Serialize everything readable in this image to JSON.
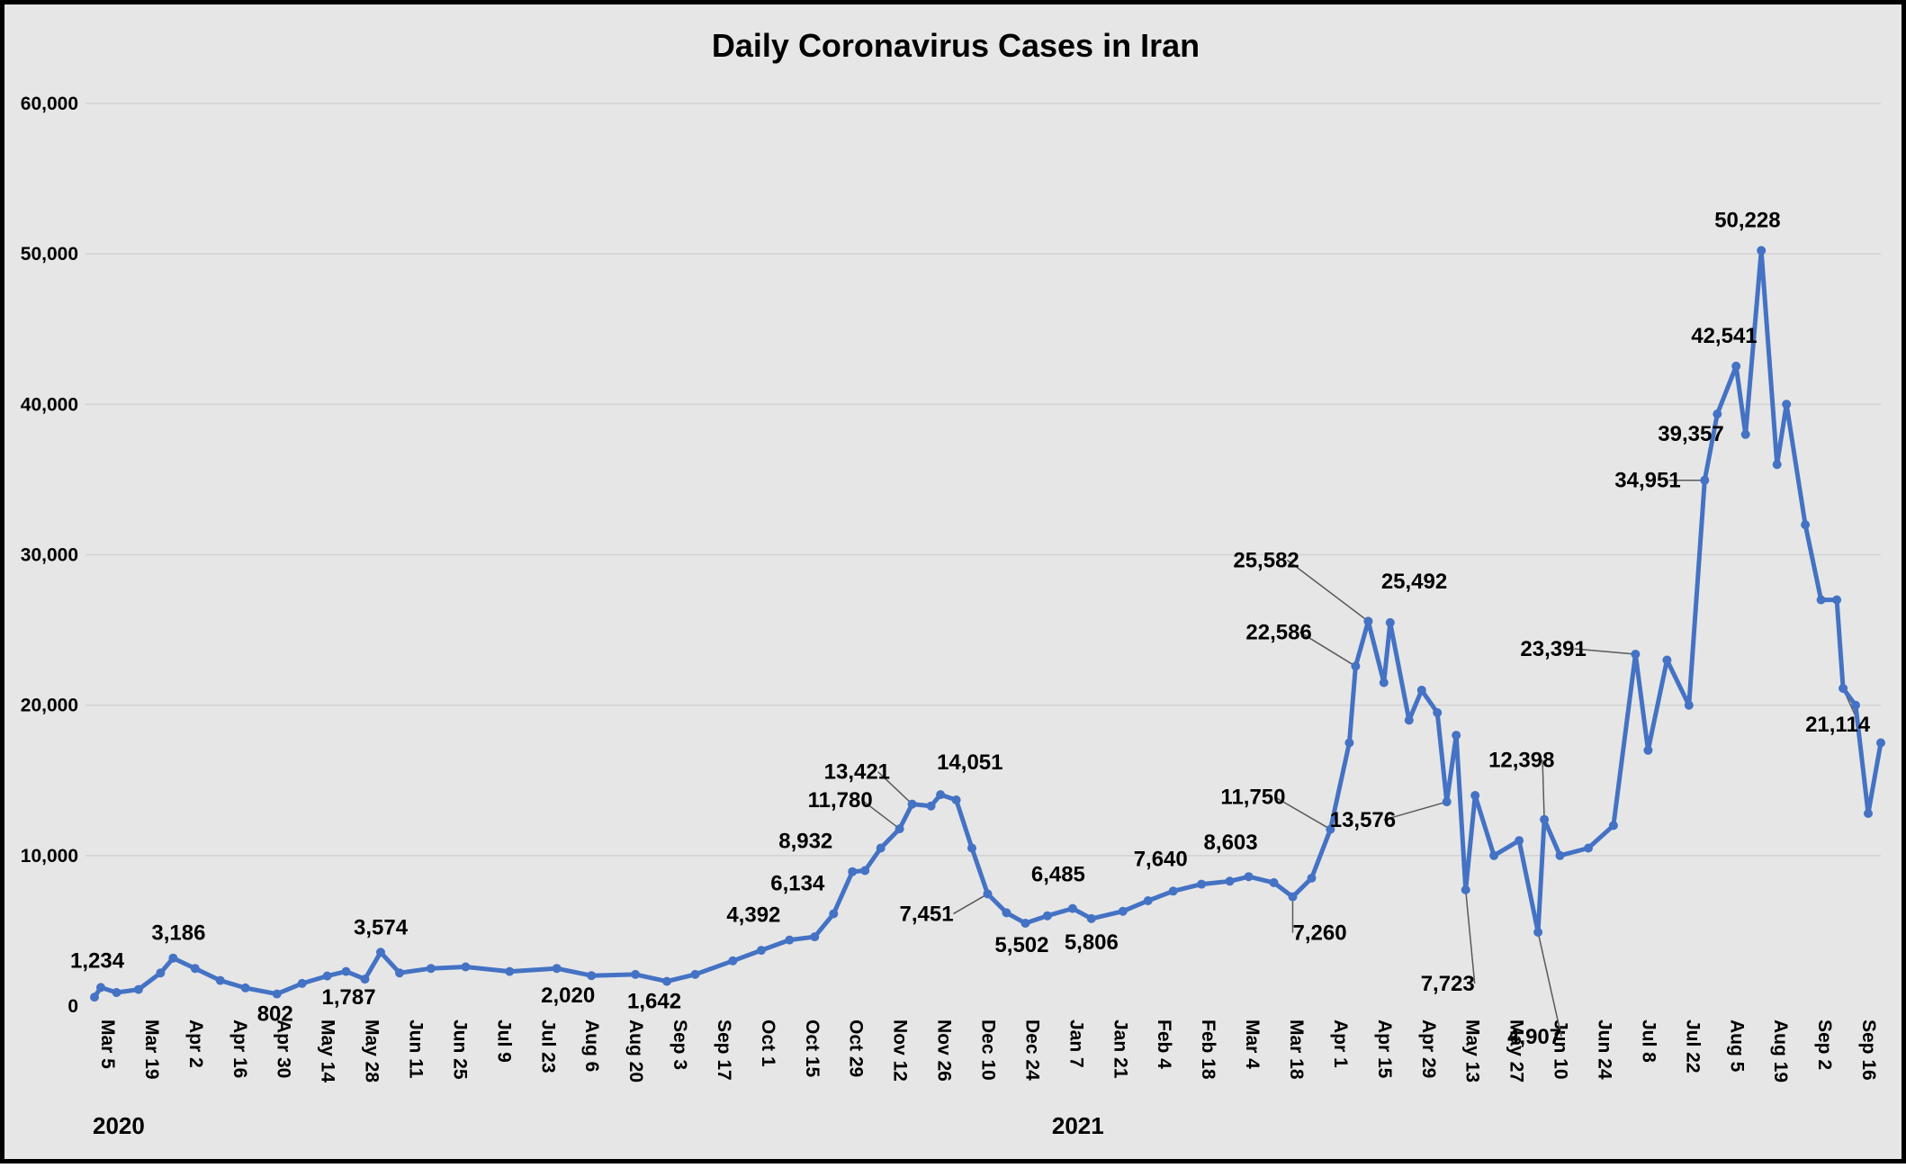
{
  "chart_data": {
    "type": "line",
    "title": "Daily Coronavirus Cases in Iran",
    "xlabel": "",
    "ylabel": "",
    "ylim": [
      0,
      60000
    ],
    "yticks": [
      0,
      10000,
      20000,
      30000,
      40000,
      50000,
      60000
    ],
    "ytick_labels": [
      "0",
      "10,000",
      "20,000",
      "30,000",
      "40,000",
      "50,000",
      "60,000"
    ],
    "grid": "horizontal",
    "legend": "none",
    "colors": {
      "line": "#4472c4",
      "background": "#e6e6e6",
      "grid": "#d2d2d2"
    },
    "x_start": "2020-03-05",
    "x_end": "2021-09-24",
    "xtick_labels": [
      "Mar 5",
      "Mar 19",
      "Apr 2",
      "Apr 16",
      "Apr 30",
      "May 14",
      "May 28",
      "Jun 11",
      "Jun 25",
      "Jul 9",
      "Jul 23",
      "Aug 6",
      "Aug 20",
      "Sep 3",
      "Sep 17",
      "Oct 1",
      "Oct 15",
      "Oct 29",
      "Nov 12",
      "Nov 26",
      "Dec 10",
      "Dec 24",
      "Jan 7",
      "Jan 21",
      "Feb 4",
      "Feb 18",
      "Mar 4",
      "Mar 18",
      "Apr 1",
      "Apr 15",
      "Apr 29",
      "May 13",
      "May 27",
      "Jun 10",
      "Jun 24",
      "Jul 8",
      "Jul 22",
      "Aug 5",
      "Aug 19",
      "Sep 2",
      "Sep 16"
    ],
    "year_labels": [
      {
        "text": "2020",
        "date": "2020-03-05"
      },
      {
        "text": "2021",
        "date": "2021-01-04"
      }
    ],
    "series": [
      {
        "points": [
          [
            "2020-03-05",
            591
          ],
          [
            "2020-03-07",
            1234
          ],
          [
            "2020-03-12",
            900
          ],
          [
            "2020-03-19",
            1100
          ],
          [
            "2020-03-26",
            2200
          ],
          [
            "2020-03-30",
            3186
          ],
          [
            "2020-04-06",
            2500
          ],
          [
            "2020-04-14",
            1700
          ],
          [
            "2020-04-22",
            1200
          ],
          [
            "2020-05-02",
            802
          ],
          [
            "2020-05-10",
            1500
          ],
          [
            "2020-05-18",
            2000
          ],
          [
            "2020-05-24",
            2300
          ],
          [
            "2020-05-30",
            1787
          ],
          [
            "2020-06-04",
            3574
          ],
          [
            "2020-06-10",
            2200
          ],
          [
            "2020-06-20",
            2500
          ],
          [
            "2020-07-01",
            2600
          ],
          [
            "2020-07-15",
            2300
          ],
          [
            "2020-07-30",
            2500
          ],
          [
            "2020-08-10",
            2020
          ],
          [
            "2020-08-24",
            2100
          ],
          [
            "2020-09-03",
            1642
          ],
          [
            "2020-09-12",
            2100
          ],
          [
            "2020-09-24",
            3000
          ],
          [
            "2020-10-03",
            3700
          ],
          [
            "2020-10-12",
            4392
          ],
          [
            "2020-10-20",
            4600
          ],
          [
            "2020-10-26",
            6134
          ],
          [
            "2020-11-01",
            8932
          ],
          [
            "2020-11-05",
            9000
          ],
          [
            "2020-11-10",
            10500
          ],
          [
            "2020-11-16",
            11780
          ],
          [
            "2020-11-20",
            13421
          ],
          [
            "2020-11-26",
            13300
          ],
          [
            "2020-11-29",
            14051
          ],
          [
            "2020-12-04",
            13700
          ],
          [
            "2020-12-09",
            10500
          ],
          [
            "2020-12-14",
            7451
          ],
          [
            "2020-12-20",
            6200
          ],
          [
            "2020-12-26",
            5502
          ],
          [
            "2021-01-02",
            6000
          ],
          [
            "2021-01-10",
            6485
          ],
          [
            "2021-01-16",
            5806
          ],
          [
            "2021-01-26",
            6300
          ],
          [
            "2021-02-03",
            7000
          ],
          [
            "2021-02-11",
            7640
          ],
          [
            "2021-02-20",
            8100
          ],
          [
            "2021-03-01",
            8300
          ],
          [
            "2021-03-07",
            8603
          ],
          [
            "2021-03-15",
            8200
          ],
          [
            "2021-03-21",
            7260
          ],
          [
            "2021-03-27",
            8500
          ],
          [
            "2021-04-02",
            11750
          ],
          [
            "2021-04-08",
            17500
          ],
          [
            "2021-04-10",
            22586
          ],
          [
            "2021-04-14",
            25582
          ],
          [
            "2021-04-19",
            21500
          ],
          [
            "2021-04-21",
            25492
          ],
          [
            "2021-04-27",
            19000
          ],
          [
            "2021-05-01",
            21000
          ],
          [
            "2021-05-06",
            19500
          ],
          [
            "2021-05-09",
            13576
          ],
          [
            "2021-05-12",
            18000
          ],
          [
            "2021-05-15",
            7723
          ],
          [
            "2021-05-18",
            14000
          ],
          [
            "2021-05-24",
            10000
          ],
          [
            "2021-06-01",
            11000
          ],
          [
            "2021-06-07",
            4907
          ],
          [
            "2021-06-09",
            12398
          ],
          [
            "2021-06-14",
            10000
          ],
          [
            "2021-06-23",
            10500
          ],
          [
            "2021-07-01",
            12000
          ],
          [
            "2021-07-08",
            23391
          ],
          [
            "2021-07-12",
            17000
          ],
          [
            "2021-07-18",
            23000
          ],
          [
            "2021-07-25",
            20000
          ],
          [
            "2021-07-30",
            34951
          ],
          [
            "2021-08-03",
            39357
          ],
          [
            "2021-08-09",
            42541
          ],
          [
            "2021-08-12",
            38000
          ],
          [
            "2021-08-17",
            50228
          ],
          [
            "2021-08-22",
            36000
          ],
          [
            "2021-08-25",
            40000
          ],
          [
            "2021-08-31",
            32000
          ],
          [
            "2021-09-05",
            27000
          ],
          [
            "2021-09-10",
            27000
          ],
          [
            "2021-09-12",
            21114
          ],
          [
            "2021-09-16",
            20000
          ],
          [
            "2021-09-20",
            12800
          ],
          [
            "2021-09-24",
            17500
          ]
        ]
      }
    ],
    "annotations": [
      {
        "text": "1,234",
        "date": "2020-03-07",
        "value": 1234
      },
      {
        "text": "3,186",
        "date": "2020-03-30",
        "value": 3186
      },
      {
        "text": "802",
        "date": "2020-05-02",
        "value": 802
      },
      {
        "text": "1,787",
        "date": "2020-05-30",
        "value": 1787
      },
      {
        "text": "3,574",
        "date": "2020-06-04",
        "value": 3574
      },
      {
        "text": "2,020",
        "date": "2020-08-10",
        "value": 2020
      },
      {
        "text": "1,642",
        "date": "2020-09-03",
        "value": 1642
      },
      {
        "text": "4,392",
        "date": "2020-10-12",
        "value": 4392
      },
      {
        "text": "6,134",
        "date": "2020-10-26",
        "value": 6134
      },
      {
        "text": "8,932",
        "date": "2020-11-01",
        "value": 8932
      },
      {
        "text": "11,780",
        "date": "2020-11-16",
        "value": 11780
      },
      {
        "text": "13,421",
        "date": "2020-11-20",
        "value": 13421
      },
      {
        "text": "14,051",
        "date": "2020-11-29",
        "value": 14051
      },
      {
        "text": "7,451",
        "date": "2020-12-14",
        "value": 7451
      },
      {
        "text": "5,502",
        "date": "2020-12-26",
        "value": 5502
      },
      {
        "text": "6,485",
        "date": "2021-01-10",
        "value": 6485
      },
      {
        "text": "5,806",
        "date": "2021-01-16",
        "value": 5806
      },
      {
        "text": "7,640",
        "date": "2021-02-11",
        "value": 7640
      },
      {
        "text": "8,603",
        "date": "2021-03-07",
        "value": 8603
      },
      {
        "text": "7,260",
        "date": "2021-03-21",
        "value": 7260
      },
      {
        "text": "11,750",
        "date": "2021-04-02",
        "value": 11750
      },
      {
        "text": "22,586",
        "date": "2021-04-10",
        "value": 22586
      },
      {
        "text": "25,582",
        "date": "2021-04-14",
        "value": 25582
      },
      {
        "text": "25,492",
        "date": "2021-04-21",
        "value": 25492
      },
      {
        "text": "13,576",
        "date": "2021-05-09",
        "value": 13576
      },
      {
        "text": "7,723",
        "date": "2021-05-15",
        "value": 7723
      },
      {
        "text": "4,907",
        "date": "2021-06-07",
        "value": 4907
      },
      {
        "text": "12,398",
        "date": "2021-06-09",
        "value": 12398
      },
      {
        "text": "23,391",
        "date": "2021-07-08",
        "value": 23391
      },
      {
        "text": "34,951",
        "date": "2021-07-30",
        "value": 34951
      },
      {
        "text": "39,357",
        "date": "2021-08-03",
        "value": 39357
      },
      {
        "text": "42,541",
        "date": "2021-08-09",
        "value": 42541
      },
      {
        "text": "50,228",
        "date": "2021-08-17",
        "value": 50228
      },
      {
        "text": "21,114",
        "date": "2021-09-12",
        "value": 21114
      }
    ]
  }
}
